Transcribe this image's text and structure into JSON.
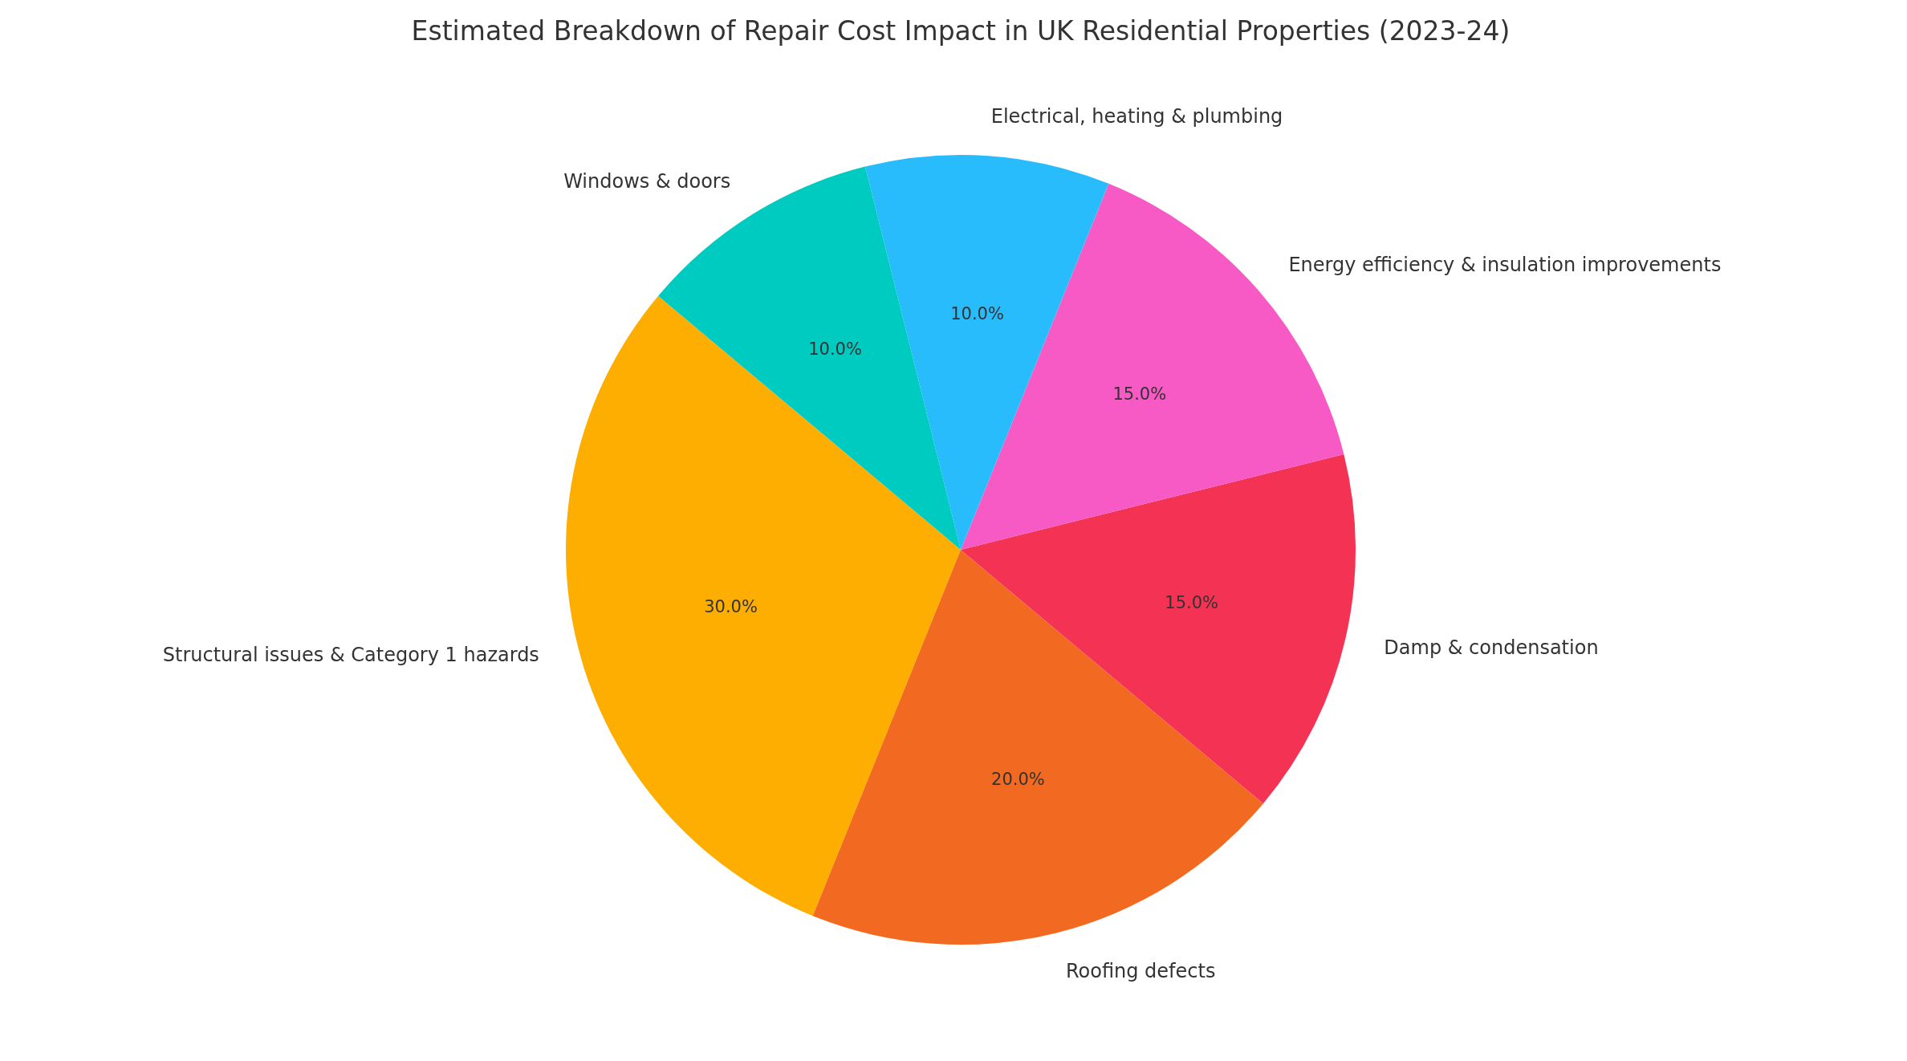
{
  "chart_data": {
    "type": "pie",
    "title": "Estimated Breakdown of Repair Cost Impact in UK Residential Properties (2023-24)",
    "categories": [
      "Structural issues & Category 1 hazards",
      "Roofing defects",
      "Damp & condensation",
      "Energy efficiency & insulation improvements",
      "Electrical, heating & plumbing",
      "Windows & doors"
    ],
    "values": [
      30,
      20,
      15,
      15,
      10,
      10
    ],
    "value_labels": [
      "30.0%",
      "20.0%",
      "15.0%",
      "15.0%",
      "10.0%",
      "10.0%"
    ],
    "colors": [
      "#fdae00",
      "#f26a21",
      "#f43254",
      "#f75ac4",
      "#29bcfc",
      "#00cbc0"
    ]
  }
}
